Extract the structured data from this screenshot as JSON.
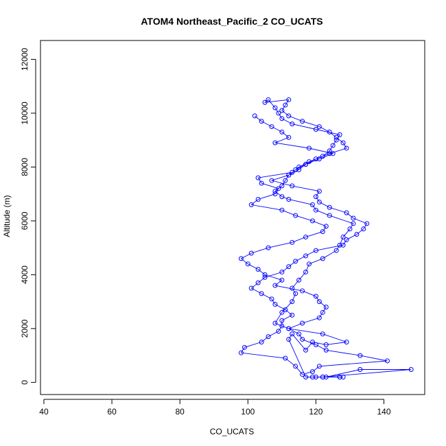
{
  "chart_data": {
    "type": "line",
    "title": "ATOM4 Northeast_Pacific_2 CO_UCATS",
    "xlabel": "CO_UCATS",
    "ylabel": "Altitude (m)",
    "xlim": [
      39,
      152
    ],
    "ylim": [
      -450,
      12700
    ],
    "xticks": [
      40,
      60,
      80,
      100,
      120,
      140
    ],
    "yticks": [
      0,
      2000,
      4000,
      6000,
      8000,
      10000,
      12000
    ],
    "xtick_labels": [
      "40",
      "60",
      "80",
      "100",
      "120",
      "140"
    ],
    "ytick_labels": [
      "0",
      "2000",
      "4000",
      "6000",
      "8000",
      "10000",
      "12000"
    ],
    "grid": false,
    "line_color": "#0000ff",
    "marker": "open-circle",
    "x": [
      120,
      122,
      148,
      133,
      123,
      127,
      128,
      127,
      122,
      119,
      117,
      112,
      113,
      117,
      119,
      123,
      129,
      122,
      112,
      108,
      110,
      113,
      114,
      113,
      115,
      117,
      118,
      122,
      126,
      127,
      128,
      130,
      131,
      124,
      120,
      119,
      112,
      110,
      108,
      110,
      111,
      112,
      115,
      117,
      120,
      124,
      129,
      128,
      126,
      124,
      121,
      116,
      112,
      110,
      111,
      112,
      105,
      106,
      108,
      109,
      110,
      113,
      120,
      127,
      126,
      125,
      124,
      122,
      118,
      115,
      113,
      103,
      104,
      109,
      108,
      103,
      101,
      110,
      114,
      119,
      123,
      122,
      117,
      113,
      106,
      101,
      98,
      100,
      103,
      105,
      110,
      108,
      116,
      120,
      121,
      123,
      122,
      121,
      116,
      112,
      115,
      116,
      120,
      123,
      133,
      141,
      121,
      119,
      116,
      114,
      111,
      98,
      99,
      104,
      106,
      109,
      110,
      110,
      113,
      111,
      108,
      107,
      104,
      101,
      103,
      105,
      110,
      112,
      114,
      117,
      120,
      128,
      129,
      132,
      134,
      135,
      131,
      129,
      124,
      121,
      120,
      121,
      113,
      107,
      112,
      114,
      117,
      121,
      125,
      118,
      108,
      112,
      110,
      107,
      104,
      102
    ],
    "y": [
      200,
      200,
      480,
      480,
      200,
      200,
      200,
      200,
      200,
      200,
      200,
      1600,
      1800,
      1200,
      1500,
      1400,
      1500,
      1800,
      2000,
      2200,
      2600,
      3000,
      3300,
      3500,
      3800,
      4100,
      4400,
      4600,
      4900,
      5100,
      5400,
      5700,
      5900,
      6200,
      6400,
      6600,
      6800,
      6900,
      7100,
      7300,
      7500,
      7700,
      7900,
      8100,
      8300,
      8500,
      8700,
      8900,
      9100,
      9300,
      9500,
      9700,
      9900,
      10100,
      10300,
      10500,
      10400,
      10500,
      10200,
      10000,
      9800,
      9600,
      9400,
      9200,
      9000,
      8800,
      8600,
      8400,
      8200,
      8000,
      7800,
      7600,
      7400,
      7200,
      7000,
      6800,
      6600,
      6400,
      6200,
      6000,
      5800,
      5600,
      5400,
      5200,
      5000,
      4800,
      4600,
      4400,
      4200,
      4000,
      3800,
      3600,
      3400,
      3200,
      3000,
      2800,
      2600,
      2400,
      2200,
      2000,
      1800,
      1600,
      1400,
      1200,
      1000,
      800,
      600,
      400,
      300,
      600,
      900,
      1100,
      1300,
      1500,
      1700,
      1900,
      2100,
      2300,
      2500,
      2700,
      2900,
      3100,
      3300,
      3500,
      3700,
      3900,
      4100,
      4300,
      4500,
      4700,
      4900,
      5100,
      5300,
      5500,
      5700,
      5900,
      6100,
      6300,
      6500,
      6700,
      6900,
      7100,
      7300,
      7500,
      7700,
      7900,
      8100,
      8300,
      8500,
      8700,
      8900,
      9100,
      9300,
      9500,
      9700,
      9900
    ]
  }
}
